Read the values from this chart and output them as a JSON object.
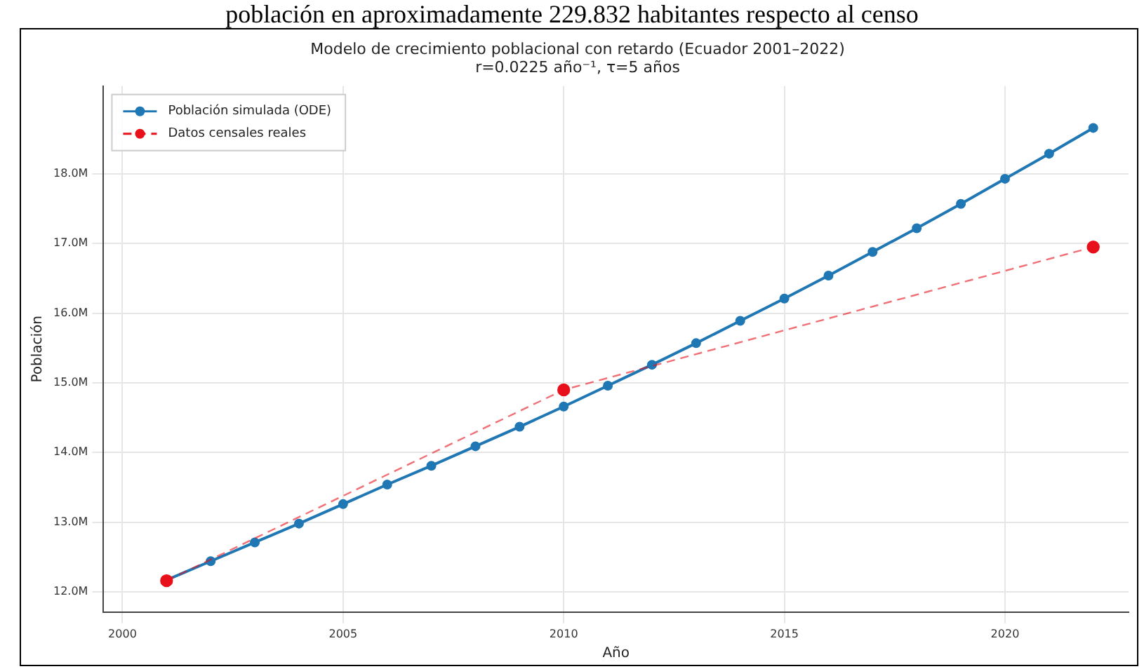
{
  "chart_data": {
    "type": "line",
    "title": "Modelo de crecimiento poblacional con retardo (Ecuador 2001–2022)",
    "subtitle": "r=0.0225 año⁻¹, τ=5 años",
    "xlabel": "Año",
    "ylabel": "Población",
    "annotations": [
      "población en aproximadamente 229.832 habitantes respecto al censo"
    ],
    "series": [
      {
        "name": "Población simulada (ODE)",
        "color": "#1f77b4",
        "marker": "circle",
        "line_style": "solid",
        "x": [
          2001,
          2002,
          2003,
          2004,
          2005,
          2006,
          2007,
          2008,
          2009,
          2010,
          2011,
          2012,
          2013,
          2014,
          2015,
          2016,
          2017,
          2018,
          2019,
          2020,
          2021,
          2022
        ],
        "values": [
          12.17,
          12.44,
          12.71,
          12.98,
          13.26,
          13.54,
          13.81,
          14.09,
          14.37,
          14.66,
          14.96,
          15.26,
          15.57,
          15.89,
          16.21,
          16.54,
          16.88,
          17.22,
          17.57,
          17.93,
          18.29,
          18.66
        ]
      },
      {
        "name": "Datos censales reales",
        "color": "#e8101a",
        "marker": "circle",
        "line_style": "dashed",
        "x": [
          2001,
          2010,
          2022
        ],
        "values": [
          12.16,
          14.9,
          16.95
        ]
      }
    ],
    "xlim": [
      1999.57,
      2022.8
    ],
    "xticks": [
      2000,
      2005,
      2010,
      2015,
      2020
    ],
    "ylim": [
      11.71,
      19.26
    ],
    "yticks": [
      {
        "value": 12,
        "label": "12.0M"
      },
      {
        "value": 13,
        "label": "13.0M"
      },
      {
        "value": 14,
        "label": "14.0M"
      },
      {
        "value": 15,
        "label": "15.0M"
      },
      {
        "value": 16,
        "label": "16.0M"
      },
      {
        "value": 17,
        "label": "17.0M"
      },
      {
        "value": 18,
        "label": "18.0M"
      }
    ],
    "grid": true,
    "legend": "top left"
  }
}
